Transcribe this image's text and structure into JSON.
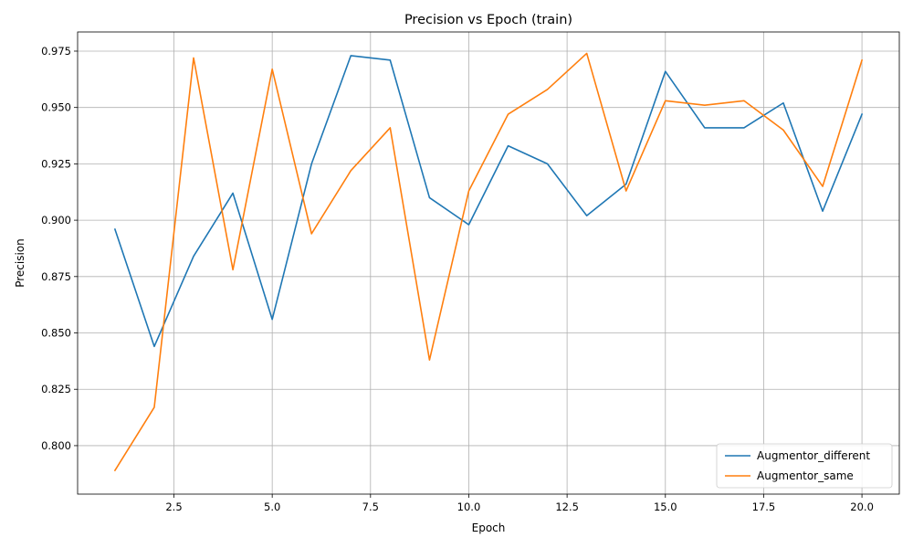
{
  "chart_data": {
    "type": "line",
    "title": "Precision vs Epoch (train)",
    "xlabel": "Epoch",
    "ylabel": "Precision",
    "xlim": [
      0.05,
      20.95
    ],
    "ylim": [
      0.7785,
      0.9835
    ],
    "xticks": [
      2.5,
      5.0,
      7.5,
      10.0,
      12.5,
      15.0,
      17.5,
      20.0
    ],
    "xtick_labels": [
      "2.5",
      "5.0",
      "7.5",
      "10.0",
      "12.5",
      "15.0",
      "17.5",
      "20.0"
    ],
    "yticks": [
      0.8,
      0.825,
      0.85,
      0.875,
      0.9,
      0.925,
      0.95,
      0.975
    ],
    "ytick_labels": [
      "0.800",
      "0.825",
      "0.850",
      "0.875",
      "0.900",
      "0.925",
      "0.950",
      "0.975"
    ],
    "grid": true,
    "legend_position": "lower-right",
    "x": [
      1,
      2,
      3,
      4,
      5,
      6,
      7,
      8,
      9,
      10,
      11,
      12,
      13,
      14,
      15,
      16,
      17,
      18,
      19,
      20
    ],
    "series": [
      {
        "name": "Augmentor_different",
        "color": "#1f77b4",
        "values": [
          0.896,
          0.844,
          0.884,
          0.912,
          0.856,
          0.925,
          0.973,
          0.971,
          0.91,
          0.898,
          0.933,
          0.925,
          0.902,
          0.916,
          0.966,
          0.941,
          0.941,
          0.952,
          0.904,
          0.947
        ]
      },
      {
        "name": "Augmentor_same",
        "color": "#ff7f0e",
        "values": [
          0.789,
          0.817,
          0.972,
          0.878,
          0.967,
          0.894,
          0.922,
          0.941,
          0.838,
          0.913,
          0.947,
          0.958,
          0.974,
          0.913,
          0.953,
          0.951,
          0.953,
          0.94,
          0.915,
          0.971
        ]
      }
    ]
  }
}
